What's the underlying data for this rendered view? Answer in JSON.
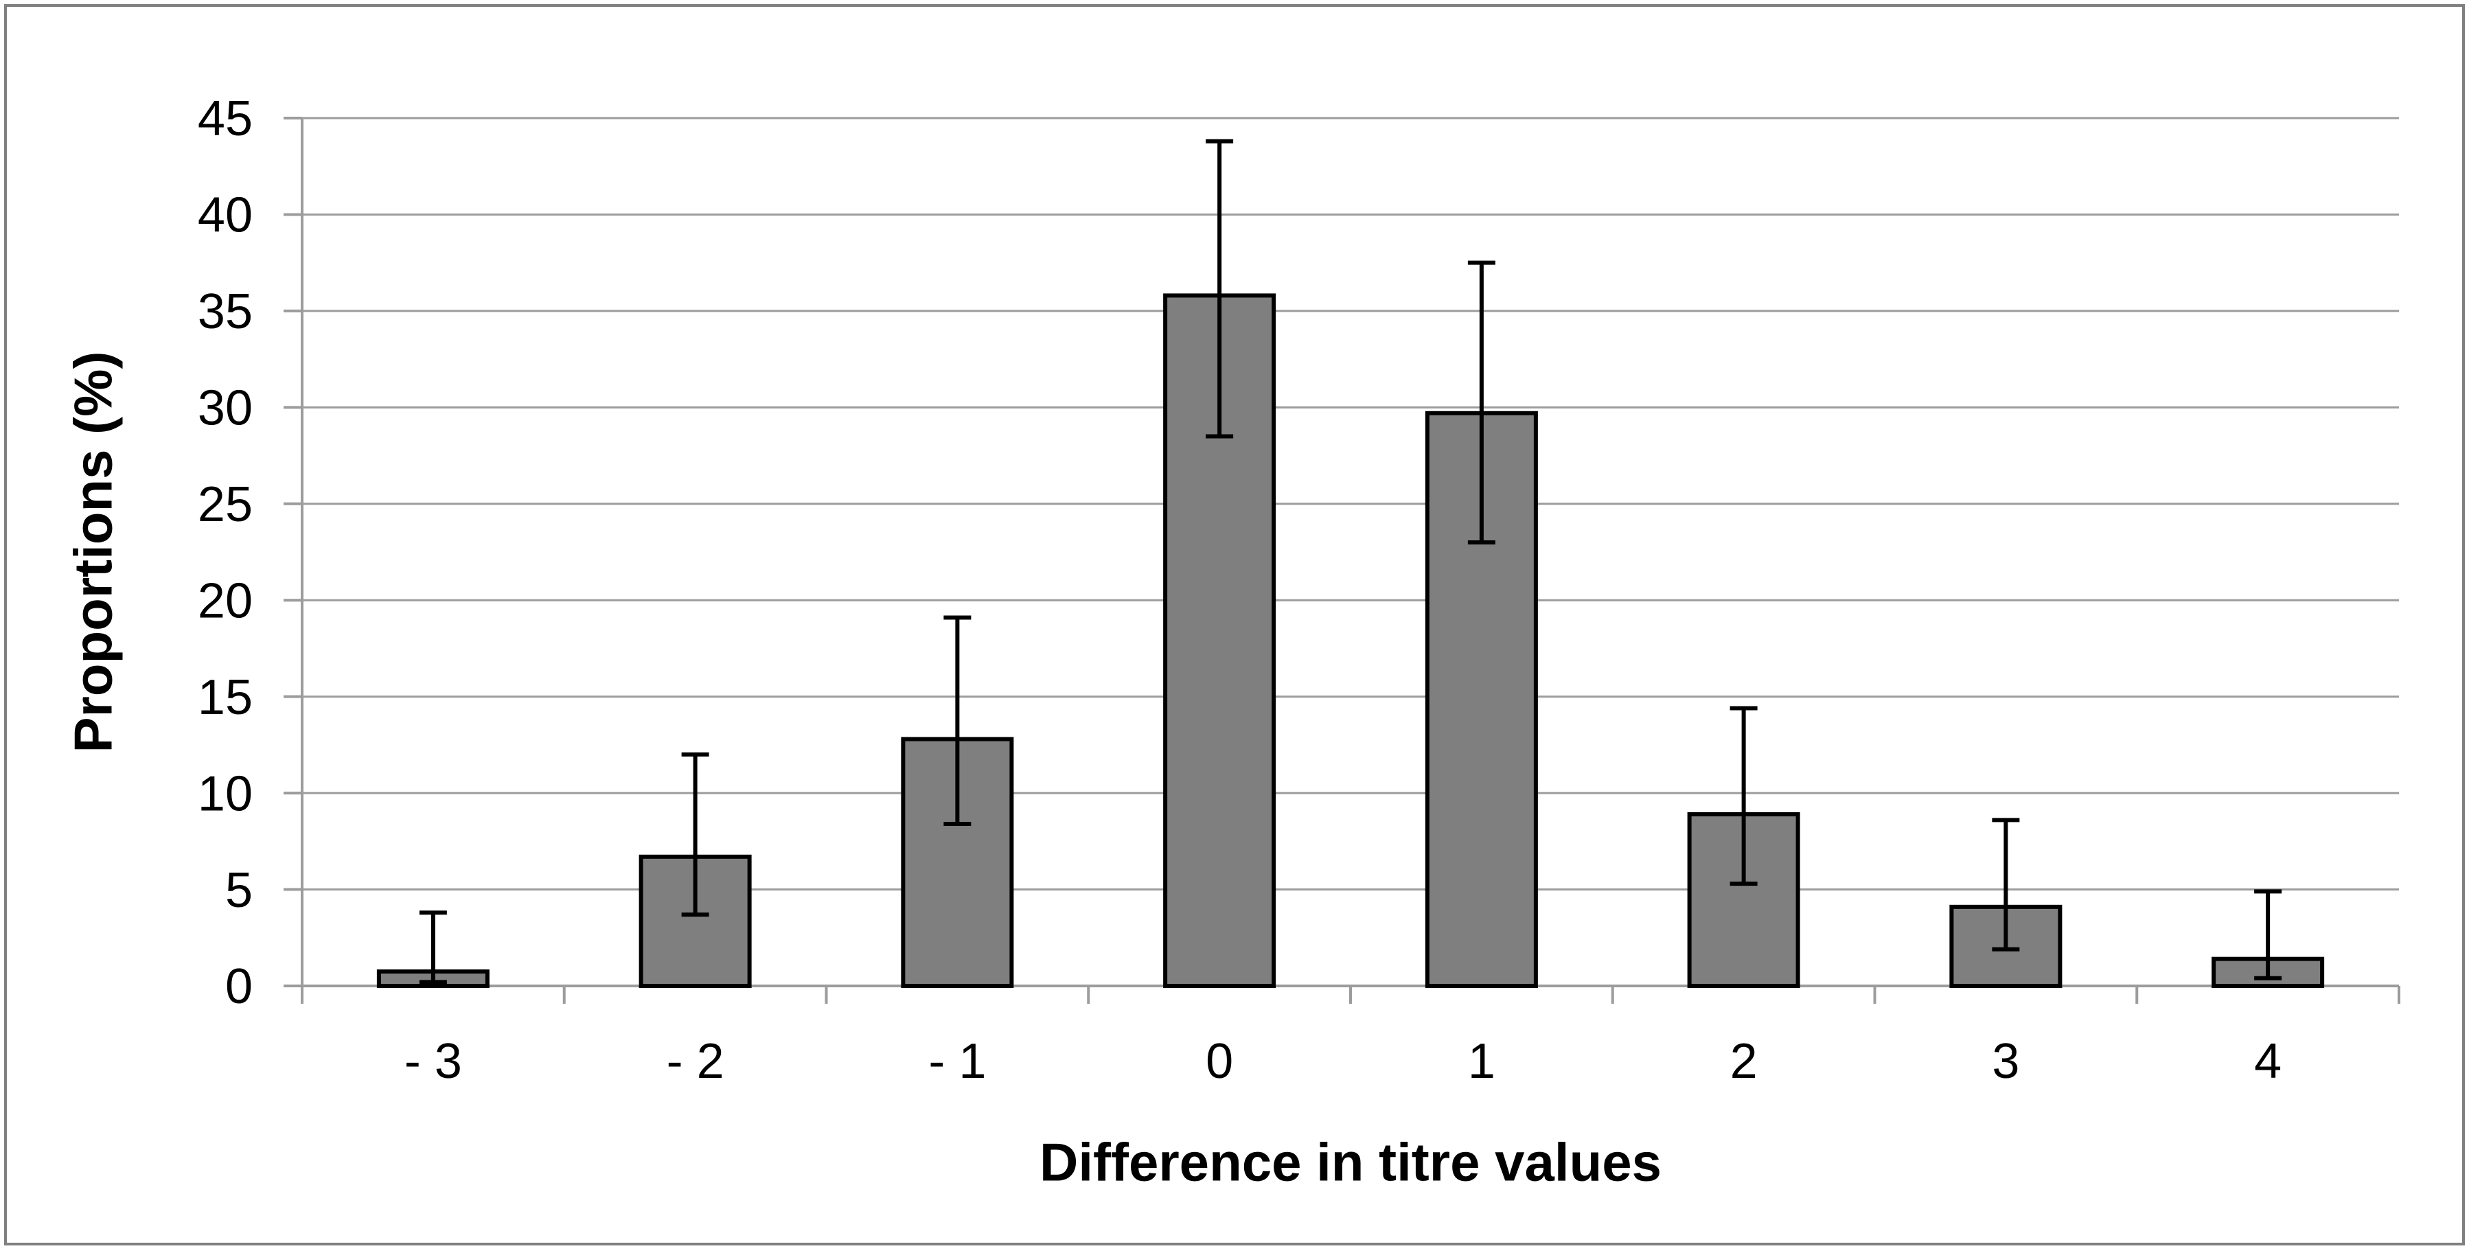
{
  "chart_data": {
    "type": "bar",
    "title": "",
    "xlabel": "Difference in titre values",
    "ylabel": "Proportions (%)",
    "categories": [
      "- 3",
      "- 2",
      "- 1",
      "0",
      "1",
      "2",
      "3",
      "4"
    ],
    "values": [
      0.75,
      6.7,
      12.8,
      35.8,
      29.7,
      8.9,
      4.1,
      1.4
    ],
    "error_low": [
      0.2,
      3.7,
      8.4,
      28.5,
      23.0,
      5.3,
      1.9,
      0.4
    ],
    "error_high": [
      3.8,
      12.0,
      19.1,
      43.8,
      37.5,
      14.4,
      8.6,
      4.9
    ],
    "ylim": [
      0,
      45
    ],
    "ytick_step": 5,
    "ytick_labels": [
      "0",
      "5",
      "10",
      "15",
      "20",
      "25",
      "30",
      "35",
      "40",
      "45"
    ],
    "grid": true,
    "legend_position": "none"
  },
  "colors": {
    "background": "#FFFFFF",
    "bar_fill": "#7F7F7F",
    "bar_border": "#000000",
    "error_bar": "#000000",
    "gridline": "#9C9C9C",
    "axis": "#9C9C9C",
    "frame_border": "#808080",
    "text": "#000000"
  }
}
